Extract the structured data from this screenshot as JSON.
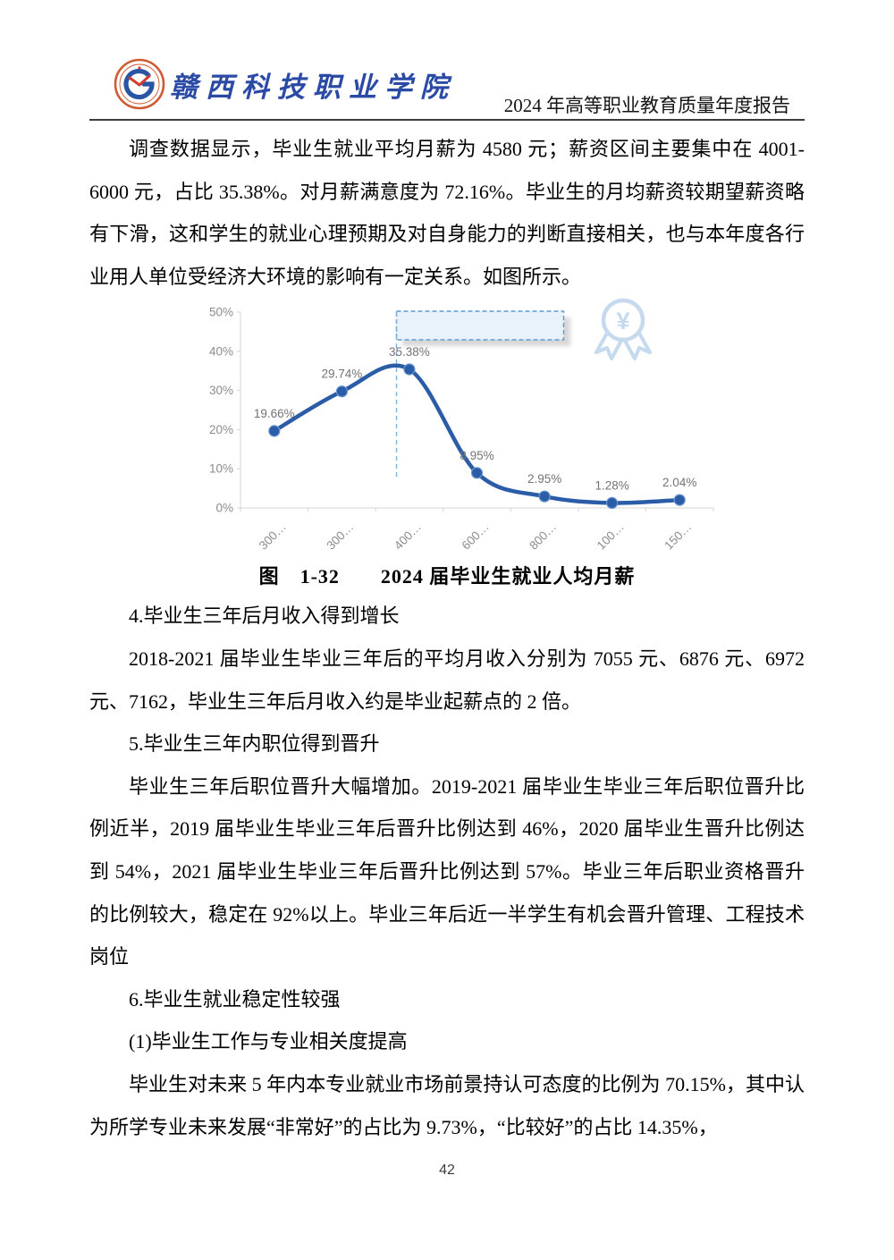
{
  "header": {
    "school_name": "赣西科技职业学院",
    "report_title": "2024 年高等职业教育质量年度报告"
  },
  "paragraphs": {
    "p1": "调查数据显示，毕业生就业平均月薪为 4580 元；薪资区间主要集中在 4001-6000 元，占比 35.38%。对月薪满意度为 72.16%。毕业生的月均薪资较期望薪资略有下滑，这和学生的就业心理预期及对自身能力的判断直接相关，也与本年度各行业用人单位受经济大环境的影响有一定关系。如图所示。",
    "h4": "4.毕业生三年后月收入得到增长",
    "p4": "2018-2021 届毕业生毕业三年后的平均月收入分别为 7055 元、6876 元、6972 元、7162，毕业生三年后月收入约是毕业起薪点的 2 倍。",
    "h5": "5.毕业生三年内职位得到晋升",
    "p5": "毕业生三年后职位晋升大幅增加。2019-2021 届毕业生毕业三年后职位晋升比例近半，2019 届毕业生毕业三年后晋升比例达到 46%，2020 届毕业生晋升比例达到 54%，2021 届毕业生毕业三年后晋升比例达到 57%。毕业三年后职业资格晋升的比例较大，稳定在 92%以上。毕业三年后近一半学生有机会晋升管理、工程技术岗位",
    "h6": "6.毕业生就业稳定性较强",
    "h6_1": "(1)毕业生工作与专业相关度提高",
    "p6": "毕业生对未来 5 年内本专业就业市场前景持认可态度的比例为 70.15%，其中认为所学专业未来发展“非常好”的占比为 9.73%，“比较好”的占比 14.35%，"
  },
  "figure": {
    "caption": "图　1-32　　2024 届毕业生就业人均月薪"
  },
  "chart_data": {
    "type": "line",
    "title": "2024届毕业生就业人均月薪",
    "xlabel": "",
    "ylabel": "",
    "categories": [
      "300…",
      "300…",
      "400…",
      "600…",
      "800…",
      "100…",
      "150…"
    ],
    "values": [
      19.66,
      29.74,
      35.38,
      8.95,
      2.95,
      1.28,
      2.04
    ],
    "labels": [
      "19.66%",
      "29.74%",
      "35.38%",
      "8.95%",
      "2.95%",
      "1.28%",
      "2.04%"
    ],
    "yticks": [
      0,
      10,
      20,
      30,
      40,
      50
    ],
    "ytick_labels": [
      "0%",
      "10%",
      "20%",
      "30%",
      "40%",
      "50%"
    ],
    "ylim": [
      0,
      50
    ],
    "smooth": true,
    "grid": false,
    "legend": "none",
    "line_color": "#2b5ca8",
    "marker_edge_color": "#6b97cf",
    "data_label_color": "#737373",
    "tick_label_color": "#8c8c8c",
    "axis_color": "#d4d4d4",
    "annotation": {
      "kind": "dashed-callout-box-with-vertical-line",
      "border_color": "#5b9bd5",
      "fill_color": "#e9f2fb",
      "line_color": "#7fb2e0"
    },
    "watermark_icon": "yen-medal-icon",
    "watermark_color": "#c5daee"
  },
  "page": {
    "number": "42"
  }
}
